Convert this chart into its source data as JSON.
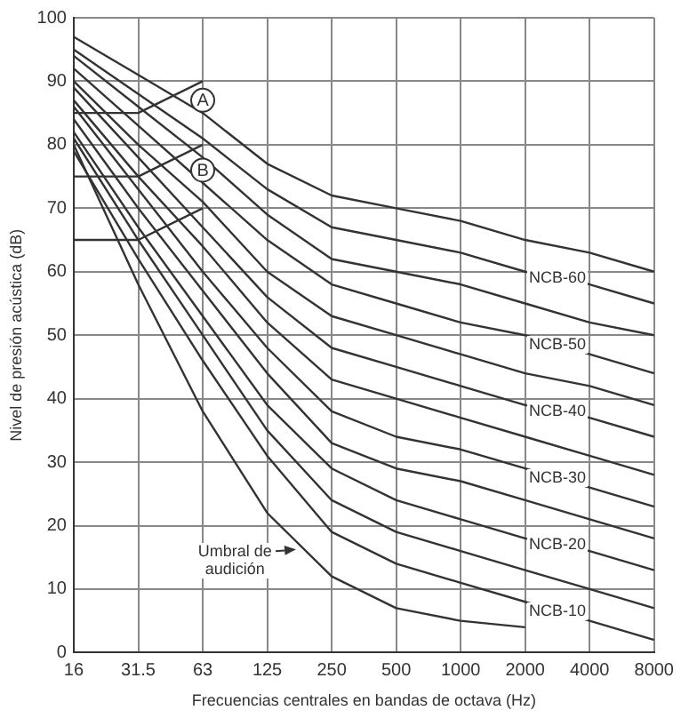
{
  "chart_data": {
    "type": "line",
    "xlabel": "Frecuencias centrales en bandas de octava (Hz)",
    "ylabel": "Nivel de presión acústica (dB)",
    "categories": [
      "16",
      "31.5",
      "63",
      "125",
      "250",
      "500",
      "1000",
      "2000",
      "4000",
      "8000"
    ],
    "ylim": [
      0,
      100
    ],
    "yticks": [
      0,
      10,
      20,
      30,
      40,
      50,
      60,
      70,
      80,
      90,
      100
    ],
    "grid": true,
    "legend": false,
    "marker": "none",
    "line_style": "solid",
    "series": [
      {
        "color": "#333333",
        "values": [
          97,
          91,
          85,
          77,
          72,
          70,
          68,
          65,
          63,
          60
        ]
      },
      {
        "name": "NCB-60",
        "color": "#333333",
        "values": [
          95,
          88,
          81,
          73,
          67,
          65,
          63,
          60,
          58,
          55
        ]
      },
      {
        "color": "#333333",
        "values": [
          94,
          86,
          78,
          69,
          62,
          60,
          58,
          55,
          52,
          50
        ]
      },
      {
        "name": "NCB-50",
        "color": "#333333",
        "values": [
          92,
          83,
          74,
          65,
          58,
          55,
          52,
          50,
          47,
          44
        ]
      },
      {
        "color": "#333333",
        "values": [
          90,
          80,
          71,
          60,
          53,
          50,
          47,
          44,
          42,
          39
        ]
      },
      {
        "name": "NCB-40",
        "color": "#333333",
        "values": [
          89,
          78,
          67,
          56,
          48,
          45,
          42,
          39,
          37,
          34
        ]
      },
      {
        "color": "#333333",
        "values": [
          87,
          75,
          64,
          52,
          43,
          40,
          37,
          34,
          31,
          28
        ]
      },
      {
        "name": "NCB-30",
        "color": "#333333",
        "values": [
          86,
          73,
          60,
          48,
          38,
          34,
          32,
          29,
          26,
          23
        ]
      },
      {
        "color": "#333333",
        "values": [
          84,
          70,
          57,
          44,
          33,
          29,
          27,
          24,
          21,
          18
        ]
      },
      {
        "name": "NCB-20",
        "color": "#333333",
        "values": [
          82,
          67,
          53,
          39,
          29,
          24,
          21,
          18,
          16,
          13
        ]
      },
      {
        "color": "#333333",
        "values": [
          81,
          65,
          50,
          35,
          24,
          19,
          16,
          13,
          10,
          7
        ]
      },
      {
        "name": "NCB-10",
        "color": "#333333",
        "values": [
          79,
          62,
          46,
          31,
          19,
          14,
          11,
          8,
          5,
          2
        ]
      },
      {
        "color": "#333333",
        "values": [
          80,
          58,
          38,
          22,
          12,
          7,
          5,
          4,
          null,
          null
        ]
      },
      {
        "color": "#333333",
        "values": [
          85,
          85,
          90,
          null,
          null,
          null,
          null,
          null,
          null,
          null
        ]
      },
      {
        "color": "#333333",
        "values": [
          75,
          75,
          80,
          null,
          null,
          null,
          null,
          null,
          null,
          null
        ]
      },
      {
        "color": "#333333",
        "values": [
          65,
          65,
          70,
          null,
          null,
          null,
          null,
          null,
          null,
          null
        ]
      }
    ],
    "annotations": [
      {
        "text": "A",
        "x": "63",
        "y": 87
      },
      {
        "text": "B",
        "x": "63",
        "y": 76
      },
      "Umbral de audición"
    ]
  }
}
